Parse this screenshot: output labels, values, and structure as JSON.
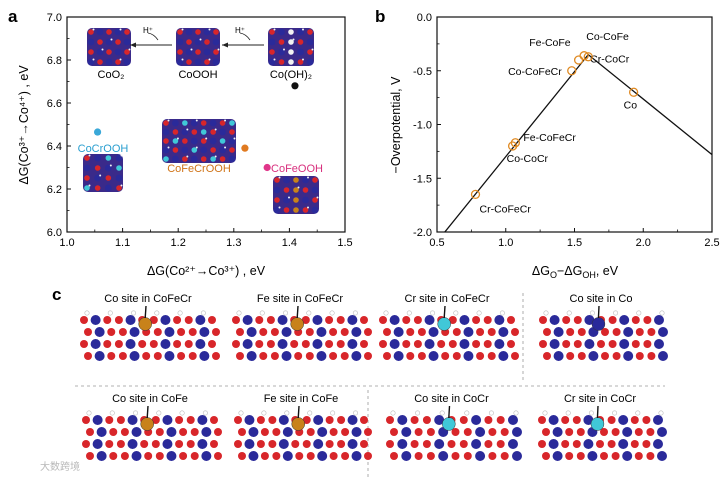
{
  "colors": {
    "axis": "#111111",
    "marker": "#e08a22",
    "dot_black": "#111111",
    "dot_cyan": "#3aa8d8",
    "dot_orange": "#e07a20",
    "dot_pink": "#e0368a",
    "label_cyan": "#2a9fd0",
    "label_orange": "#d07418",
    "label_pink": "#d8307e",
    "atom_red": "#d8262a",
    "atom_blue": "#2a2a9a",
    "atom_white": "#f2f2f2",
    "atom_cyan": "#40c8d8",
    "atom_gold": "#c8821a",
    "divider": "#999999"
  },
  "panel_letters": {
    "a": "a",
    "b": "b",
    "c": "c"
  },
  "chart_data": [
    {
      "id": "a",
      "type": "scatter",
      "xlabel": "ΔG(Co²⁺→Co³⁺) , eV",
      "ylabel": "ΔG(Co³⁺→Co⁴⁺) , eV",
      "xlim": [
        1.0,
        1.5
      ],
      "ylim": [
        6.0,
        7.0
      ],
      "xticks": [
        "1.0",
        "1.1",
        "1.2",
        "1.3",
        "1.4",
        "1.5"
      ],
      "yticks": [
        "6.0",
        "6.2",
        "6.4",
        "6.6",
        "6.8",
        "7.0"
      ],
      "points": [
        {
          "name": "Co(OH)2",
          "x": 1.41,
          "y": 6.68,
          "color": "dot_black"
        },
        {
          "name": "CoCrOOH",
          "x": 1.055,
          "y": 6.465,
          "color": "dot_cyan"
        },
        {
          "name": "CoFeCrOOH",
          "x": 1.32,
          "y": 6.39,
          "color": "dot_orange"
        },
        {
          "name": "CoFeOOH",
          "x": 1.36,
          "y": 6.3,
          "color": "dot_pink"
        }
      ],
      "structure_labels": {
        "coo2": "CoO₂",
        "cooh": "CoOOH",
        "cooh2": "Co(OH)₂",
        "h_plus_1": "H⁺",
        "h_plus_2": "H⁺",
        "cocrooh": "CoCrOOH",
        "cofecrooh": "CoFeCrOOH",
        "cofeooh": "CoFeOOH"
      }
    },
    {
      "id": "b",
      "type": "line",
      "xlabel": "ΔG_O−ΔG_OH, eV",
      "xlabel_main": "ΔGO−ΔGOH, eV",
      "ylabel": "−Overpotential, V",
      "xlim": [
        0.5,
        2.5
      ],
      "ylim": [
        -2.0,
        0.0
      ],
      "xticks": [
        "0.5",
        "1.0",
        "1.5",
        "2.0",
        "2.5"
      ],
      "yticks": [
        "0.0",
        "-0.5",
        "-1.0",
        "-1.5",
        "-2.0"
      ],
      "volcano": {
        "x": [
          0.5,
          1.6,
          2.5
        ],
        "y": [
          -2.09,
          -0.35,
          -1.28
        ]
      },
      "points": [
        {
          "name": "Cr-CoFeCr",
          "x": 0.78,
          "y": -1.65
        },
        {
          "name": "Co-CoCr",
          "x": 1.05,
          "y": -1.2
        },
        {
          "name": "Fe-CoFeCr",
          "x": 1.07,
          "y": -1.17
        },
        {
          "name": "Co-CoFeCr",
          "x": 1.48,
          "y": -0.5
        },
        {
          "name": "Fe-CoFe",
          "x": 1.53,
          "y": -0.4
        },
        {
          "name": "Cr-CoCr",
          "x": 1.57,
          "y": -0.36
        },
        {
          "name": "Co-CoFe",
          "x": 1.6,
          "y": -0.37
        },
        {
          "name": "Co",
          "x": 1.93,
          "y": -0.7
        }
      ]
    }
  ],
  "panel_c": {
    "sites": [
      {
        "label": "Co site in CoFeCr",
        "highlight": "atom_gold"
      },
      {
        "label": "Fe site in CoFeCr",
        "highlight": "atom_gold"
      },
      {
        "label": "Cr site in CoFeCr",
        "highlight": "atom_cyan"
      },
      {
        "label": "Co site in Co",
        "highlight": "atom_blue"
      },
      {
        "label": "Co site in CoFe",
        "highlight": "atom_gold"
      },
      {
        "label": "Fe site in CoFe",
        "highlight": "atom_gold"
      },
      {
        "label": "Co site in CoCr",
        "highlight": "atom_cyan"
      },
      {
        "label": "Cr site in CoCr",
        "highlight": "atom_cyan"
      }
    ]
  },
  "watermark": "大数跨境"
}
